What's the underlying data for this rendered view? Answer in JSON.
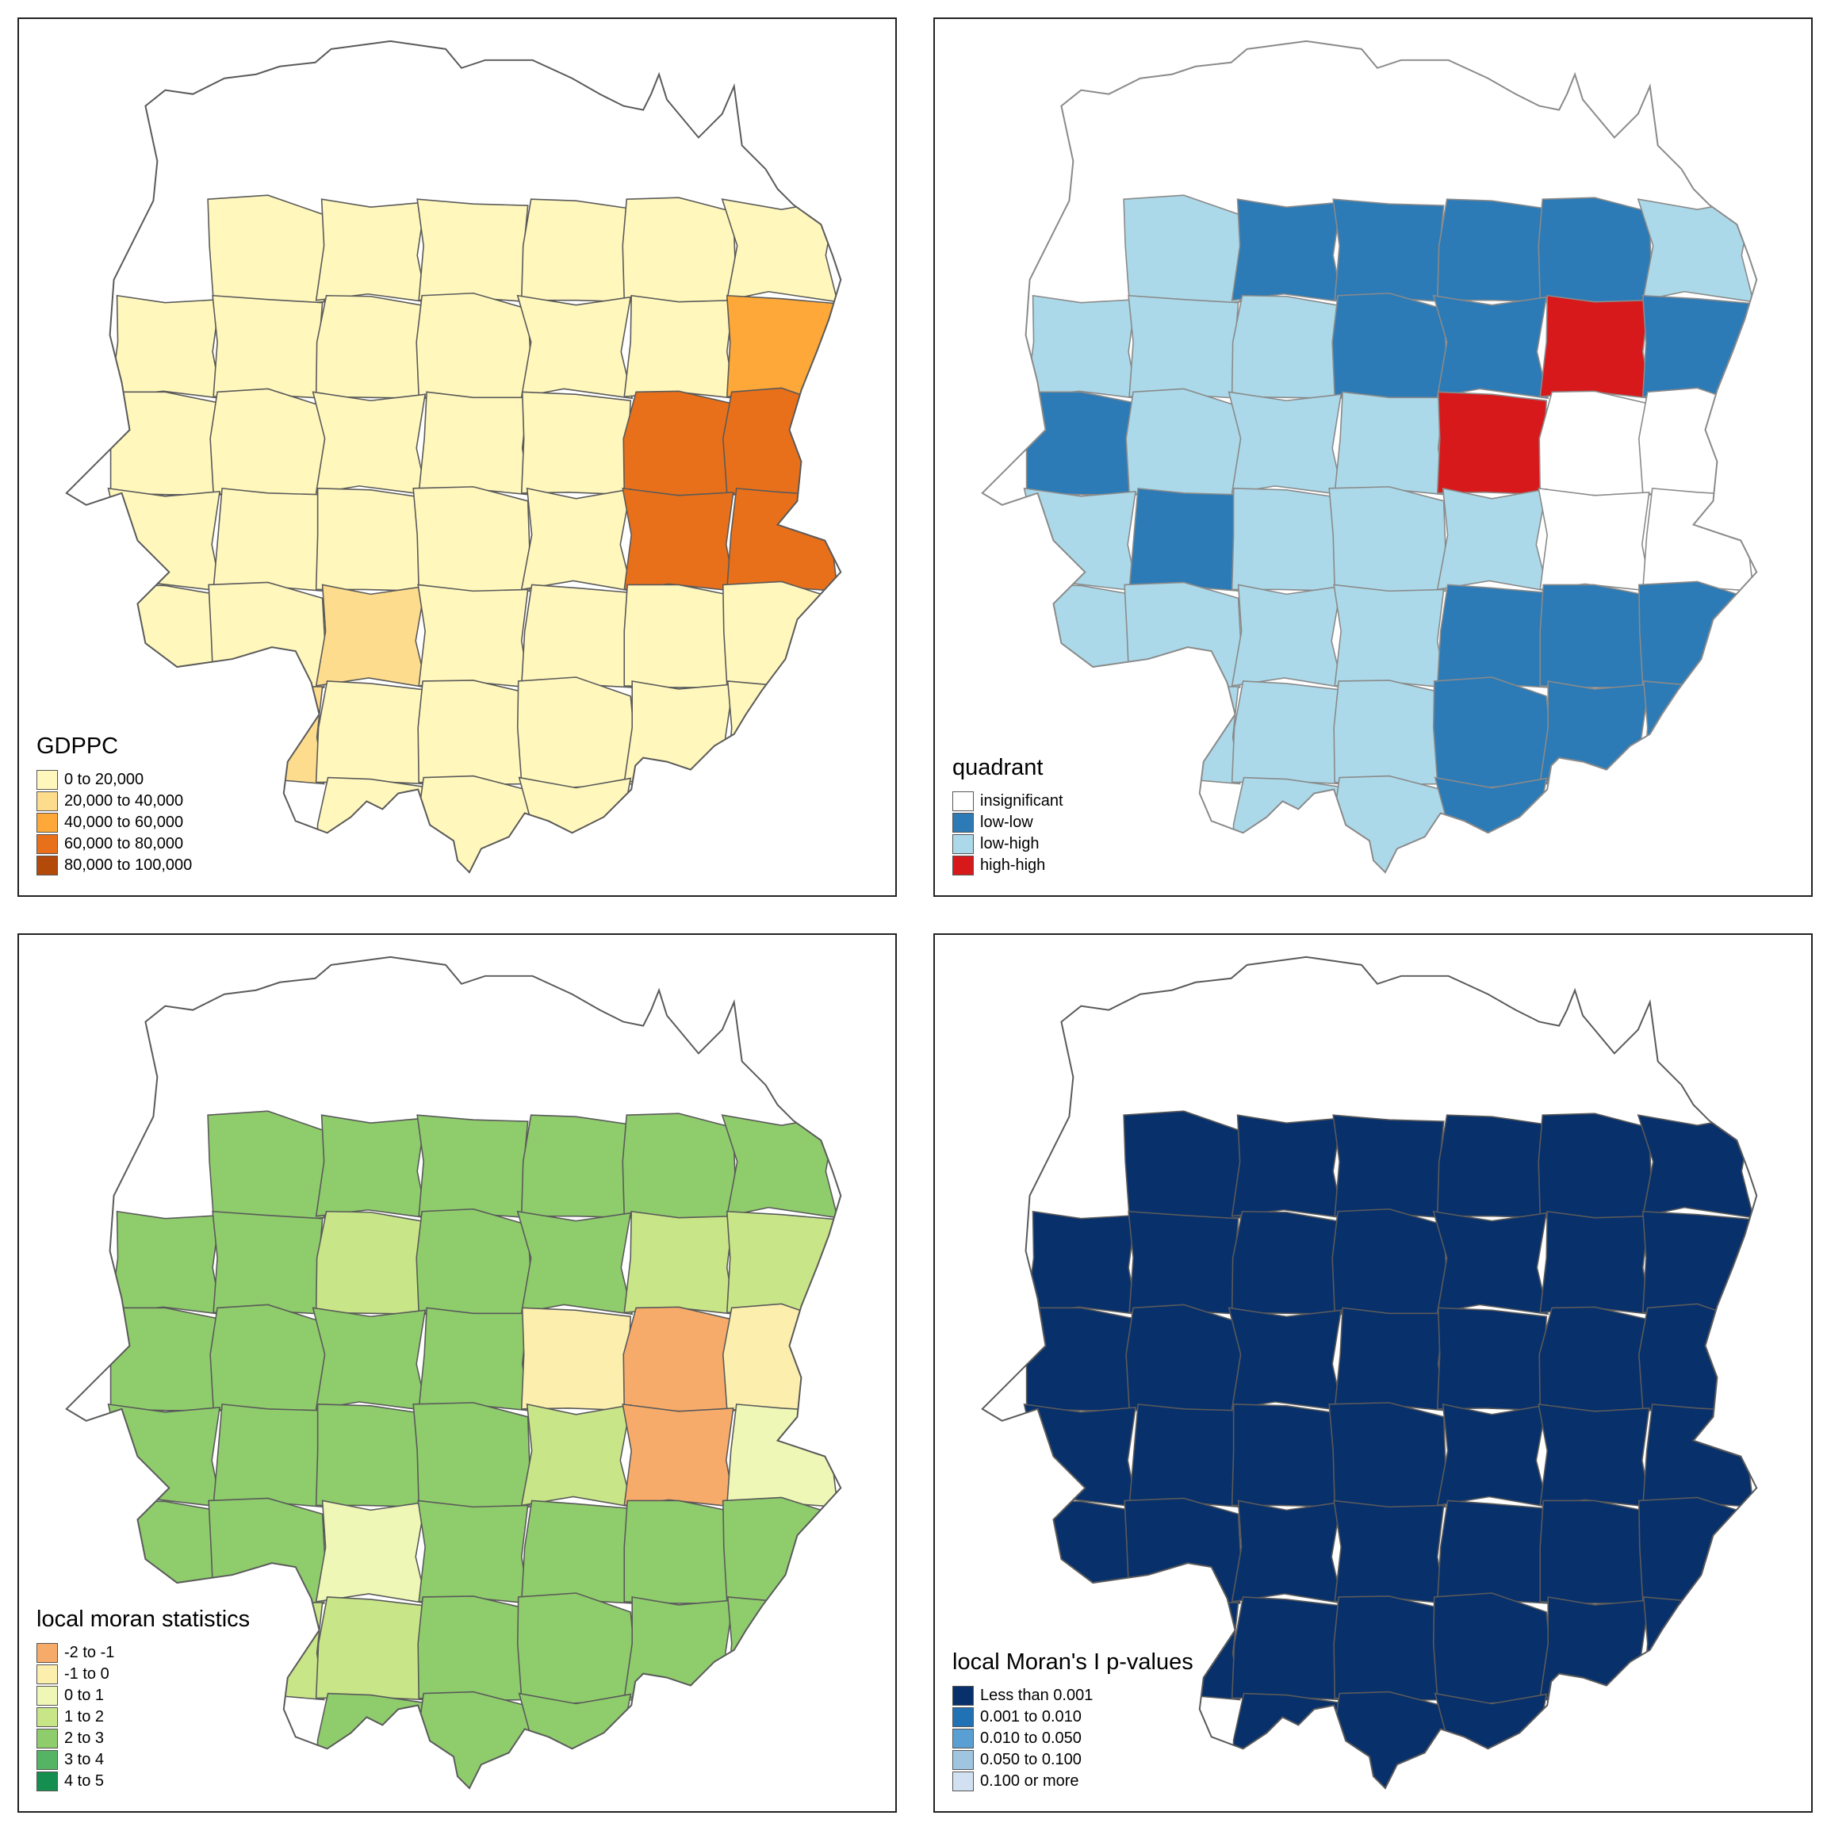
{
  "panels": [
    {
      "id": "gdppc",
      "legend_title": "GDPPC",
      "classes": [
        {
          "label": "0 to 20,000",
          "color": "#fff7bc"
        },
        {
          "label": "20,000 to 40,000",
          "color": "#fddc8d"
        },
        {
          "label": "40,000 to 60,000",
          "color": "#fda838"
        },
        {
          "label": "60,000 to 80,000",
          "color": "#e8701a"
        },
        {
          "label": "80,000 to 100,000",
          "color": "#b44a0a"
        }
      ]
    },
    {
      "id": "quadrant",
      "legend_title": "quadrant",
      "classes": [
        {
          "label": "insignificant",
          "color": "#ffffff"
        },
        {
          "label": "low-low",
          "color": "#2c7bb6"
        },
        {
          "label": "low-high",
          "color": "#abd9e9"
        },
        {
          "label": "high-high",
          "color": "#d7191c"
        }
      ]
    },
    {
      "id": "local_moran",
      "legend_title": "local moran statistics",
      "classes": [
        {
          "label": "-2 to -1",
          "color": "#f7ab6a"
        },
        {
          "label": "-1 to 0",
          "color": "#fcefae"
        },
        {
          "label": "0 to 1",
          "color": "#eef7b5"
        },
        {
          "label": "1 to 2",
          "color": "#c8e588"
        },
        {
          "label": "2 to 3",
          "color": "#8fcc6c"
        },
        {
          "label": "3 to 4",
          "color": "#55b463"
        },
        {
          "label": "4 to 5",
          "color": "#148f4f"
        }
      ]
    },
    {
      "id": "pvalues",
      "legend_title": "local Moran's I p-values",
      "classes": [
        {
          "label": "Less than 0.001",
          "color": "#08306b"
        },
        {
          "label": "0.001 to 0.010",
          "color": "#2171b5"
        },
        {
          "label": "0.010 to 0.050",
          "color": "#5a9fd4"
        },
        {
          "label": "0.050 to 0.100",
          "color": "#a0c5e0"
        },
        {
          "label": "0.100 or more",
          "color": "#d2e1f2"
        }
      ]
    }
  ]
}
